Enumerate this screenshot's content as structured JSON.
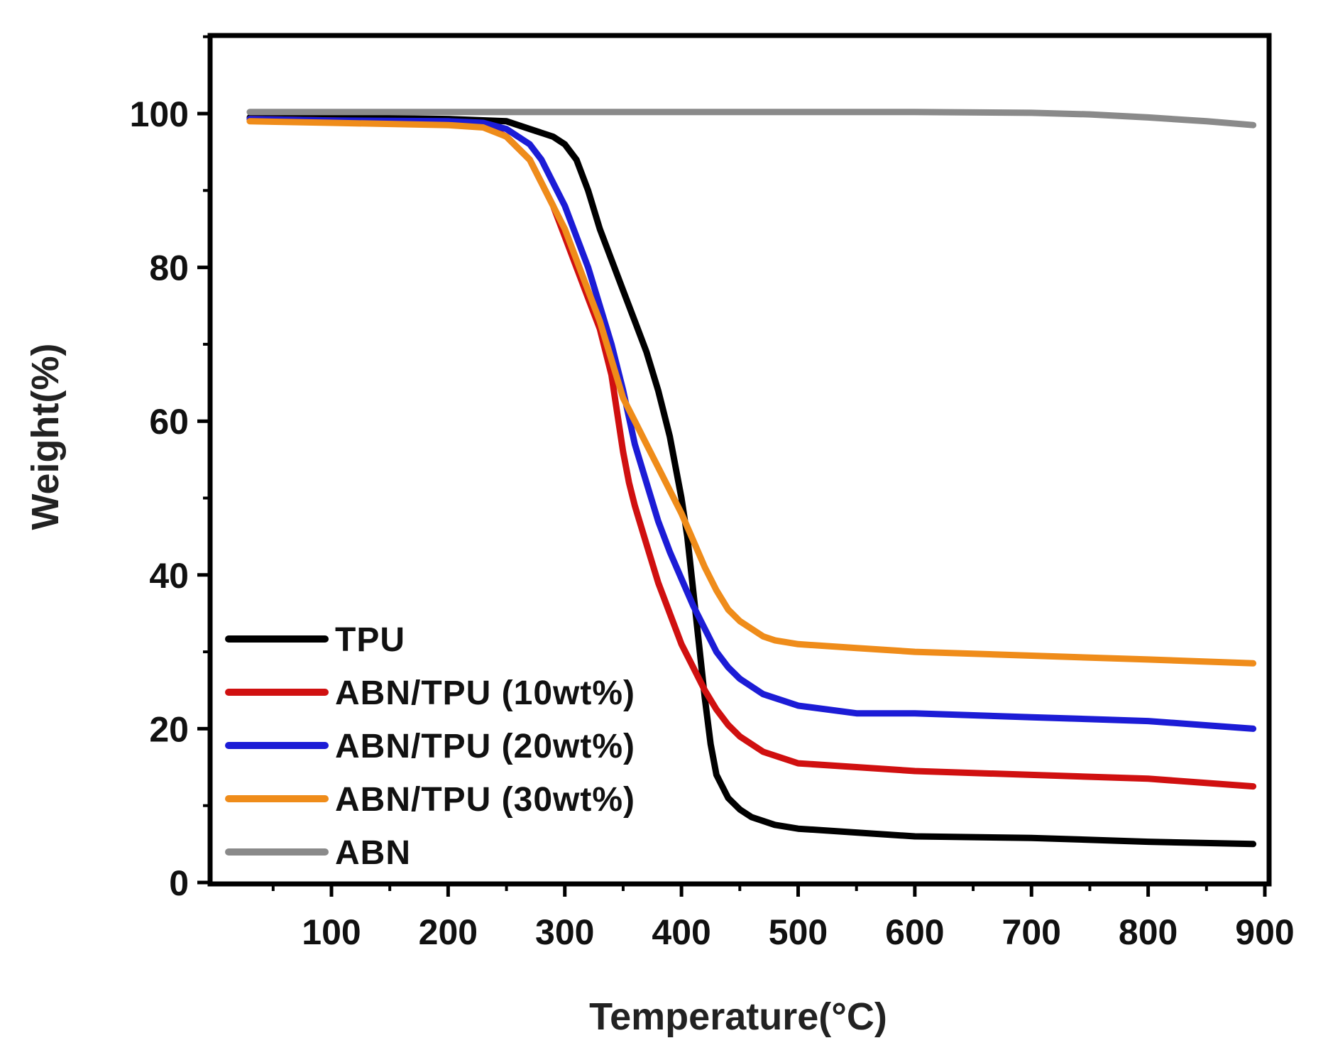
{
  "chart_data": {
    "type": "line",
    "title": "",
    "xlabel": "Temperature(°C)",
    "ylabel": "Weight(%)",
    "xlim": [
      0,
      900
    ],
    "ylim": [
      0,
      110
    ],
    "x_ticks": [
      100,
      200,
      300,
      400,
      500,
      600,
      700,
      800,
      900
    ],
    "y_ticks": [
      0,
      20,
      40,
      60,
      80,
      100
    ],
    "grid": false,
    "legend_position": "bottom-left",
    "series": [
      {
        "name": "TPU",
        "color": "#000000",
        "x": [
          30,
          100,
          200,
          250,
          270,
          290,
          300,
          310,
          320,
          330,
          340,
          350,
          360,
          370,
          380,
          390,
          395,
          400,
          405,
          410,
          415,
          420,
          425,
          430,
          440,
          450,
          460,
          480,
          500,
          550,
          600,
          700,
          800,
          890
        ],
        "y": [
          99.5,
          99.5,
          99.3,
          99,
          98,
          97,
          96,
          94,
          90,
          85,
          81,
          77,
          73,
          69,
          64,
          58,
          54,
          50,
          45,
          38,
          31,
          24,
          18,
          14,
          11,
          9.5,
          8.5,
          7.5,
          7,
          6.5,
          6,
          5.8,
          5.3,
          5
        ]
      },
      {
        "name": "ABN/TPU (10wt%)",
        "color": "#d01010",
        "x": [
          30,
          100,
          200,
          230,
          250,
          270,
          280,
          290,
          300,
          310,
          320,
          330,
          340,
          345,
          350,
          355,
          360,
          370,
          380,
          390,
          400,
          410,
          420,
          430,
          440,
          450,
          470,
          500,
          550,
          600,
          700,
          800,
          890
        ],
        "y": [
          99.3,
          99.1,
          98.8,
          98.5,
          97,
          94,
          91,
          88,
          84,
          80,
          76,
          72,
          66,
          61,
          56,
          52,
          49,
          44,
          39,
          35,
          31,
          28,
          25,
          22.5,
          20.5,
          19,
          17,
          15.5,
          15,
          14.5,
          14,
          13.5,
          12.5
        ]
      },
      {
        "name": "ABN/TPU (20wt%)",
        "color": "#1c1cd6",
        "x": [
          30,
          100,
          200,
          230,
          250,
          270,
          280,
          290,
          300,
          310,
          320,
          330,
          340,
          350,
          360,
          370,
          380,
          390,
          400,
          410,
          420,
          430,
          440,
          450,
          470,
          500,
          550,
          600,
          700,
          800,
          890
        ],
        "y": [
          99.3,
          99.1,
          99,
          98.8,
          98,
          96,
          94,
          91,
          88,
          84,
          80,
          75,
          70,
          64,
          57,
          52,
          47,
          43,
          39.5,
          36,
          33,
          30,
          28,
          26.5,
          24.5,
          23,
          22,
          22,
          21.5,
          21,
          20
        ]
      },
      {
        "name": "ABN/TPU (30wt%)",
        "color": "#ef8c1a",
        "x": [
          30,
          100,
          200,
          230,
          250,
          270,
          280,
          290,
          300,
          310,
          320,
          330,
          340,
          350,
          360,
          370,
          380,
          390,
          400,
          410,
          420,
          430,
          440,
          450,
          460,
          470,
          480,
          500,
          550,
          600,
          700,
          800,
          890
        ],
        "y": [
          99,
          98.8,
          98.5,
          98.2,
          97,
          94,
          91,
          88,
          85,
          81,
          77,
          73,
          68,
          63,
          60,
          57,
          54,
          51,
          48,
          44.5,
          41,
          38,
          35.5,
          34,
          33,
          32,
          31.5,
          31,
          30.5,
          30,
          29.5,
          29,
          28.5
        ]
      },
      {
        "name": "ABN",
        "color": "#8a8a8a",
        "x": [
          30,
          100,
          200,
          300,
          400,
          500,
          600,
          700,
          750,
          800,
          850,
          890
        ],
        "y": [
          100.2,
          100.2,
          100.2,
          100.2,
          100.2,
          100.2,
          100.2,
          100.1,
          99.9,
          99.5,
          99,
          98.5
        ]
      }
    ]
  }
}
